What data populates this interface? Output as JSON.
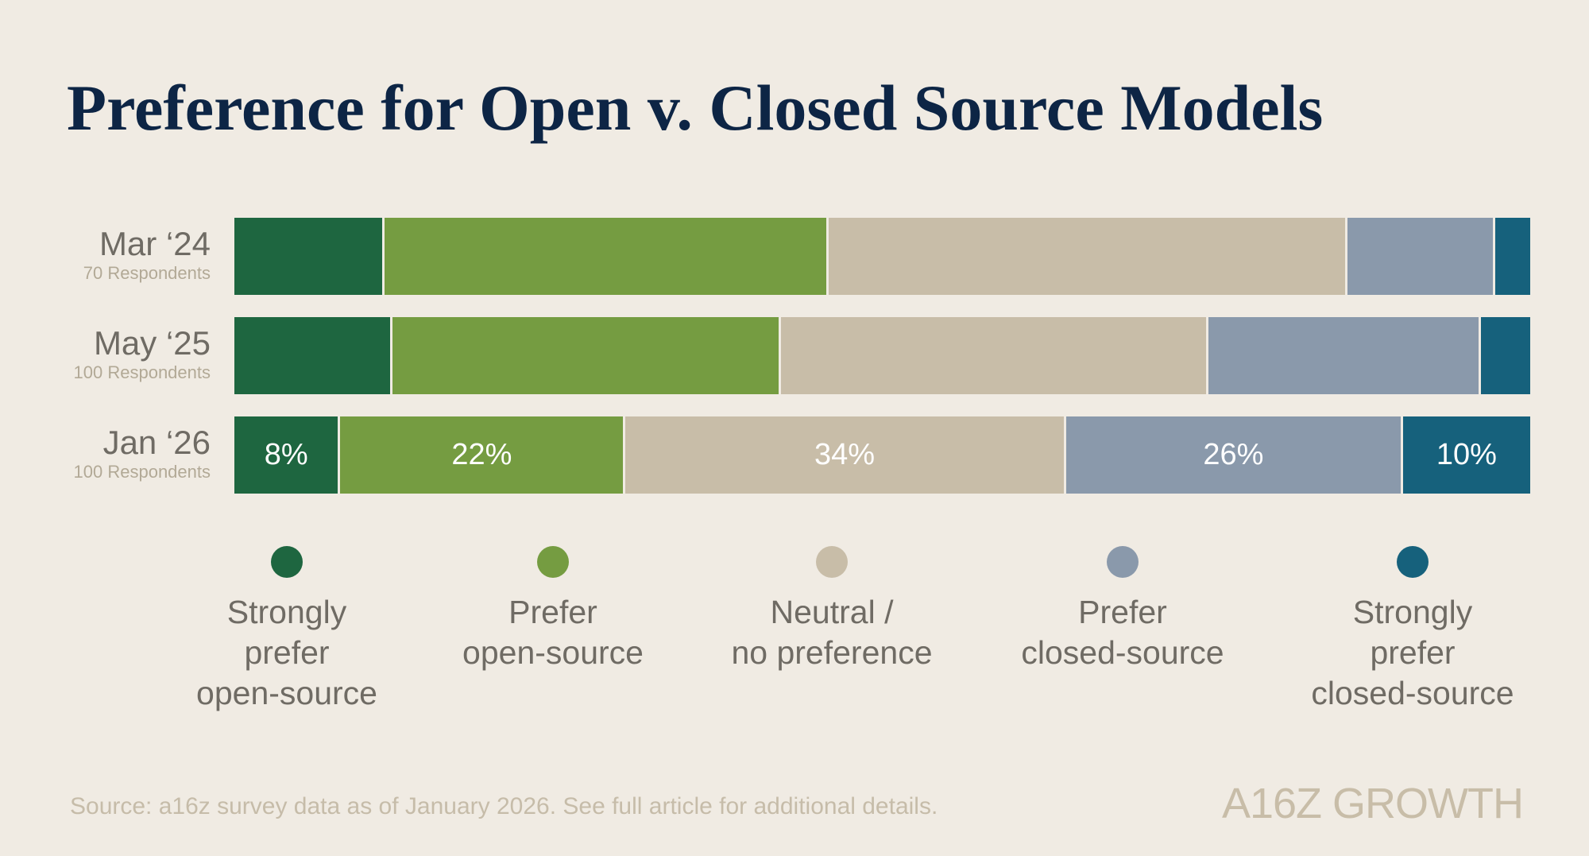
{
  "chart_data": {
    "type": "bar",
    "orientation": "horizontal",
    "stacked": true,
    "normalized": true,
    "title": "Preference for Open v. Closed Source Models",
    "categories": [
      "Mar ‘24",
      "May ‘25",
      "Jan ‘26"
    ],
    "category_subtitles": [
      "70 Respondents",
      "100 Respondents",
      "100 Respondents"
    ],
    "series": [
      {
        "name": "Strongly prefer open-source",
        "color": "#1e6640",
        "values": [
          11.4,
          12,
          8
        ]
      },
      {
        "name": "Prefer open-source",
        "color": "#759c41",
        "values": [
          34.3,
          30,
          22
        ]
      },
      {
        "name": "Neutral / no preference",
        "color": "#c8bda8",
        "values": [
          40,
          33,
          34
        ]
      },
      {
        "name": "Prefer closed-source",
        "color": "#8a99ab",
        "values": [
          11.4,
          21,
          26
        ]
      },
      {
        "name": "Strongly prefer closed-source",
        "color": "#16617c",
        "values": [
          2.9,
          4,
          10
        ]
      }
    ],
    "data_labels": [
      [],
      [],
      [
        "8%",
        "22%",
        "34%",
        "26%",
        "10%"
      ]
    ],
    "xlim": [
      0,
      100
    ],
    "grid": false,
    "legend_placement": "bottom"
  },
  "legend_lines": [
    "Strongly\nprefer\nopen-source",
    "Prefer\nopen-source",
    "Neutral /\nno preference",
    "Prefer\nclosed-source",
    "Strongly\nprefer\nclosed-source"
  ],
  "source": "Source: a16z survey data as of January 2026. See full article for additional details.",
  "logo": "A16Z GROWTH",
  "colors": {
    "background": "#f0ebe3",
    "title": "#0d2545"
  }
}
